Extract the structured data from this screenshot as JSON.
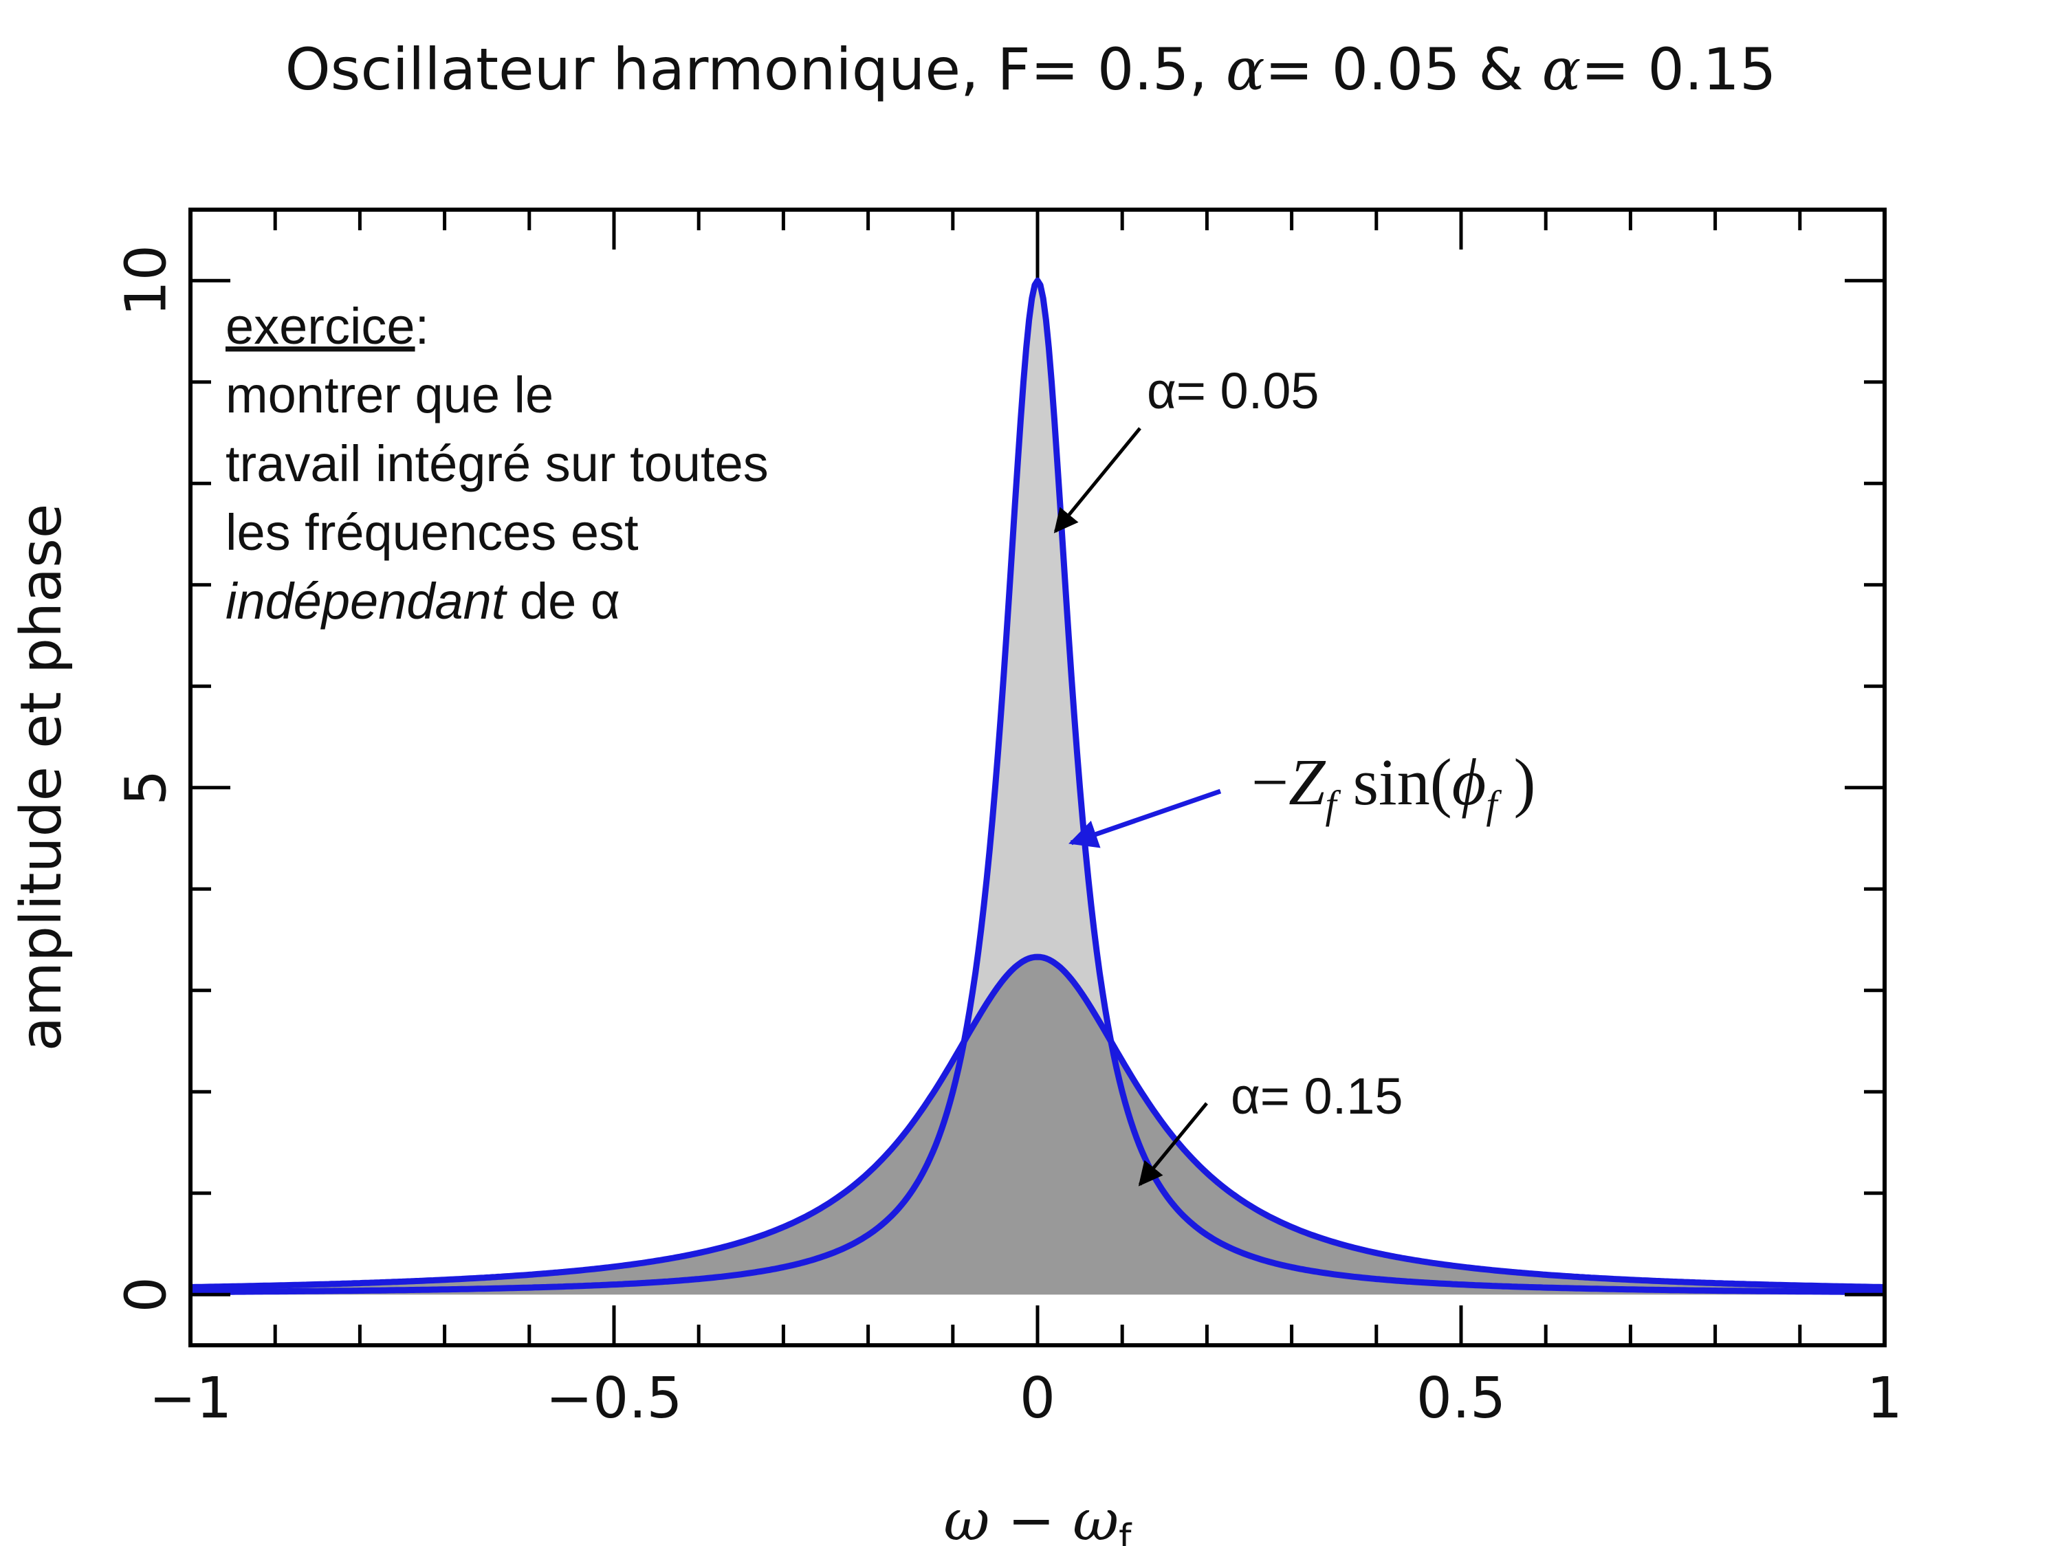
{
  "chart_data": {
    "type": "area",
    "title": {
      "prefix": "Oscillateur harmonique, F= 0.5, ",
      "alpha_symbol": "α",
      "alpha1_text": "= 0.05 & ",
      "alpha2_text": "= 0.15"
    },
    "xlabel": {
      "omega": "ω",
      "minus": " − ",
      "omega_f": "ω",
      "sub": "f"
    },
    "ylabel": "amplitude et phase",
    "xlim": [
      -1,
      1
    ],
    "ylim": [
      -0.5,
      10.7
    ],
    "x_ticks": [
      {
        "value": -1,
        "label": "−1"
      },
      {
        "value": -0.5,
        "label": "−0.5"
      },
      {
        "value": 0,
        "label": "0"
      },
      {
        "value": 0.5,
        "label": "0.5"
      },
      {
        "value": 1,
        "label": "1"
      }
    ],
    "y_ticks": [
      {
        "value": 0,
        "label": "0"
      },
      {
        "value": 5,
        "label": "5"
      },
      {
        "value": 10,
        "label": "10"
      }
    ],
    "vertical_line_x": 0,
    "series": [
      {
        "name": "α= 0.05",
        "alpha": 0.05,
        "peak": 10,
        "color": "#1a1adf",
        "fill": "#cdcdcd",
        "points": [
          [
            -1,
            0.025
          ],
          [
            -0.8,
            0.039
          ],
          [
            -0.6,
            0.069
          ],
          [
            -0.4,
            0.154
          ],
          [
            -0.3,
            0.27
          ],
          [
            -0.2,
            0.59
          ],
          [
            -0.15,
            1.0
          ],
          [
            -0.1,
            2.0
          ],
          [
            -0.075,
            3.08
          ],
          [
            -0.05,
            5.0
          ],
          [
            -0.04,
            6.1
          ],
          [
            -0.03,
            7.35
          ],
          [
            -0.02,
            8.62
          ],
          [
            -0.01,
            9.62
          ],
          [
            0,
            10
          ],
          [
            0.01,
            9.62
          ],
          [
            0.02,
            8.62
          ],
          [
            0.03,
            7.35
          ],
          [
            0.04,
            6.1
          ],
          [
            0.05,
            5.0
          ],
          [
            0.075,
            3.08
          ],
          [
            0.1,
            2.0
          ],
          [
            0.15,
            1.0
          ],
          [
            0.2,
            0.59
          ],
          [
            0.3,
            0.27
          ],
          [
            0.4,
            0.154
          ],
          [
            0.6,
            0.069
          ],
          [
            0.8,
            0.039
          ],
          [
            1,
            0.025
          ]
        ]
      },
      {
        "name": "α= 0.15",
        "alpha": 0.15,
        "peak": 3.33,
        "color": "#1a1adf",
        "fill": "#999999",
        "points": [
          [
            -1,
            0.073
          ],
          [
            -0.8,
            0.113
          ],
          [
            -0.6,
            0.196
          ],
          [
            -0.4,
            0.41
          ],
          [
            -0.3,
            0.67
          ],
          [
            -0.2,
            1.2
          ],
          [
            -0.15,
            1.67
          ],
          [
            -0.1,
            2.31
          ],
          [
            -0.075,
            2.67
          ],
          [
            -0.05,
            3.0
          ],
          [
            -0.025,
            3.24
          ],
          [
            0,
            3.33
          ],
          [
            0.025,
            3.24
          ],
          [
            0.05,
            3.0
          ],
          [
            0.075,
            2.67
          ],
          [
            0.1,
            2.31
          ],
          [
            0.15,
            1.67
          ],
          [
            0.2,
            1.2
          ],
          [
            0.3,
            0.67
          ],
          [
            0.4,
            0.41
          ],
          [
            0.6,
            0.196
          ],
          [
            0.8,
            0.113
          ],
          [
            1,
            0.073
          ]
        ]
      }
    ],
    "annotations": {
      "exercise_heading": "exercice",
      "exercise_colon": ":",
      "exercise_line1": "montrer que le",
      "exercise_line2": "travail intégré sur toutes",
      "exercise_line3": "les fréquences est",
      "exercise_italic": "indépendant",
      "exercise_line4_rest": " de α",
      "label_alpha1": "α= 0.05",
      "label_alpha2": "α= 0.15",
      "formula": {
        "minus": "−",
        "Z": "Z",
        "sub1": "f",
        "sin": " sin(",
        "phi": "ϕ",
        "sub2": "f",
        "close": " )"
      }
    }
  }
}
